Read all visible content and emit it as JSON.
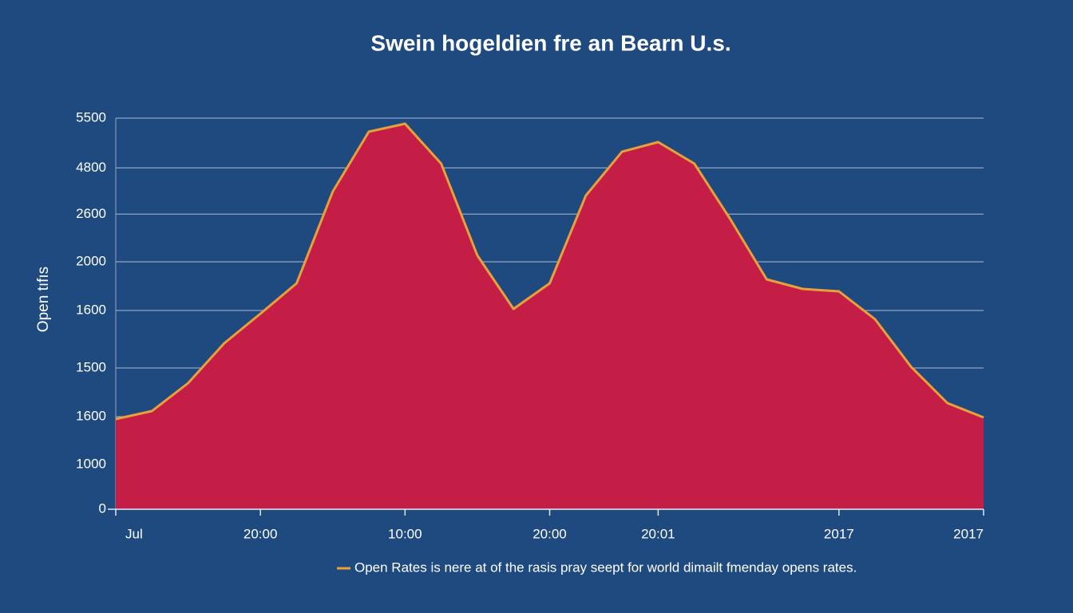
{
  "chart_data": {
    "type": "area",
    "title": "Swein hogeldien  fre an Bearn U.s.",
    "y_label": "Open tıfıs",
    "categories": [
      "Jul",
      null,
      null,
      null,
      "20:00",
      null,
      null,
      null,
      "10:00",
      null,
      null,
      null,
      "20:00",
      null,
      null,
      "20:01",
      null,
      null,
      null,
      null,
      "2017",
      null,
      null,
      null,
      "2017"
    ],
    "series": [
      {
        "name": "Open Rates is nere at of the rasis pray seept for world dimailt fmenday opens rates.",
        "color": "#c41e47",
        "line_color": "#e8a03a",
        "values": [
          1268,
          1381,
          1773,
          2335,
          2750,
          3176,
          4467,
          5309,
          5421,
          4860,
          3569,
          2817,
          3176,
          4411,
          5028,
          5163,
          4860,
          4074,
          3233,
          3098,
          3064,
          2671,
          2000,
          1493,
          1291
        ]
      }
    ],
    "ylim": [
      0,
      5500
    ],
    "yticks": [
      5500,
      4800,
      {
        "value": 4150,
        "label": "2600"
      },
      {
        "value": 3480,
        "label": "2000"
      },
      {
        "value": 2795,
        "label": "1600"
      },
      {
        "value": 1987,
        "label": "1500"
      },
      {
        "value": 1302,
        "label": "1600"
      },
      {
        "value": 629,
        "label": "1000"
      },
      0
    ],
    "grid": true,
    "legend": "bottom"
  }
}
